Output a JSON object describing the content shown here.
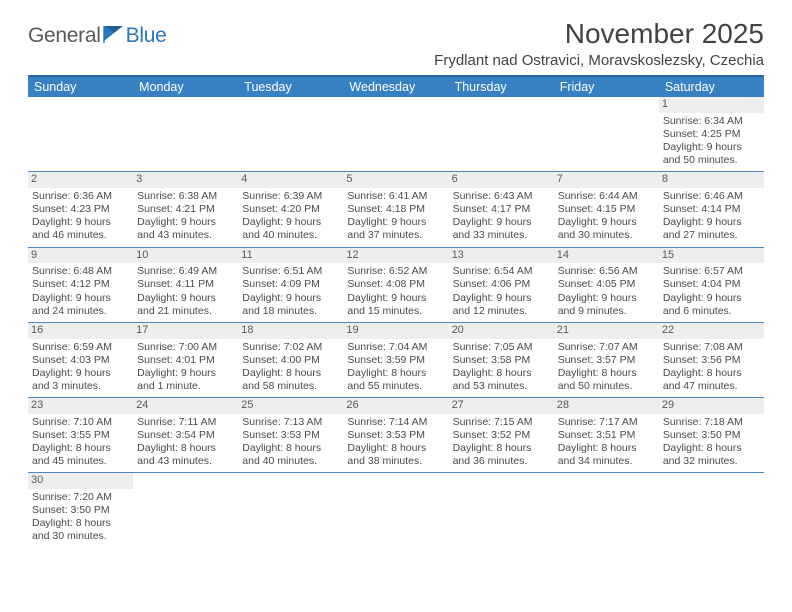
{
  "logo": {
    "part1": "General",
    "part2": "Blue"
  },
  "title": "November 2025",
  "location": "Frydlant nad Ostravici, Moravskoslezsky, Czechia",
  "colors": {
    "header_bg": "#3781c2",
    "header_border_top": "#2764a3",
    "row_divider": "#4a87c4",
    "daynum_bg": "#eeeeee",
    "text": "#424242",
    "logo_blue": "#2a77bd",
    "logo_gray": "#595959"
  },
  "day_headers": [
    "Sunday",
    "Monday",
    "Tuesday",
    "Wednesday",
    "Thursday",
    "Friday",
    "Saturday"
  ],
  "weeks": [
    [
      {
        "blank": true
      },
      {
        "blank": true
      },
      {
        "blank": true
      },
      {
        "blank": true
      },
      {
        "blank": true
      },
      {
        "blank": true
      },
      {
        "day": "1",
        "sunrise": "Sunrise: 6:34 AM",
        "sunset": "Sunset: 4:25 PM",
        "daylight1": "Daylight: 9 hours",
        "daylight2": "and 50 minutes."
      }
    ],
    [
      {
        "day": "2",
        "sunrise": "Sunrise: 6:36 AM",
        "sunset": "Sunset: 4:23 PM",
        "daylight1": "Daylight: 9 hours",
        "daylight2": "and 46 minutes."
      },
      {
        "day": "3",
        "sunrise": "Sunrise: 6:38 AM",
        "sunset": "Sunset: 4:21 PM",
        "daylight1": "Daylight: 9 hours",
        "daylight2": "and 43 minutes."
      },
      {
        "day": "4",
        "sunrise": "Sunrise: 6:39 AM",
        "sunset": "Sunset: 4:20 PM",
        "daylight1": "Daylight: 9 hours",
        "daylight2": "and 40 minutes."
      },
      {
        "day": "5",
        "sunrise": "Sunrise: 6:41 AM",
        "sunset": "Sunset: 4:18 PM",
        "daylight1": "Daylight: 9 hours",
        "daylight2": "and 37 minutes."
      },
      {
        "day": "6",
        "sunrise": "Sunrise: 6:43 AM",
        "sunset": "Sunset: 4:17 PM",
        "daylight1": "Daylight: 9 hours",
        "daylight2": "and 33 minutes."
      },
      {
        "day": "7",
        "sunrise": "Sunrise: 6:44 AM",
        "sunset": "Sunset: 4:15 PM",
        "daylight1": "Daylight: 9 hours",
        "daylight2": "and 30 minutes."
      },
      {
        "day": "8",
        "sunrise": "Sunrise: 6:46 AM",
        "sunset": "Sunset: 4:14 PM",
        "daylight1": "Daylight: 9 hours",
        "daylight2": "and 27 minutes."
      }
    ],
    [
      {
        "day": "9",
        "sunrise": "Sunrise: 6:48 AM",
        "sunset": "Sunset: 4:12 PM",
        "daylight1": "Daylight: 9 hours",
        "daylight2": "and 24 minutes."
      },
      {
        "day": "10",
        "sunrise": "Sunrise: 6:49 AM",
        "sunset": "Sunset: 4:11 PM",
        "daylight1": "Daylight: 9 hours",
        "daylight2": "and 21 minutes."
      },
      {
        "day": "11",
        "sunrise": "Sunrise: 6:51 AM",
        "sunset": "Sunset: 4:09 PM",
        "daylight1": "Daylight: 9 hours",
        "daylight2": "and 18 minutes."
      },
      {
        "day": "12",
        "sunrise": "Sunrise: 6:52 AM",
        "sunset": "Sunset: 4:08 PM",
        "daylight1": "Daylight: 9 hours",
        "daylight2": "and 15 minutes."
      },
      {
        "day": "13",
        "sunrise": "Sunrise: 6:54 AM",
        "sunset": "Sunset: 4:06 PM",
        "daylight1": "Daylight: 9 hours",
        "daylight2": "and 12 minutes."
      },
      {
        "day": "14",
        "sunrise": "Sunrise: 6:56 AM",
        "sunset": "Sunset: 4:05 PM",
        "daylight1": "Daylight: 9 hours",
        "daylight2": "and 9 minutes."
      },
      {
        "day": "15",
        "sunrise": "Sunrise: 6:57 AM",
        "sunset": "Sunset: 4:04 PM",
        "daylight1": "Daylight: 9 hours",
        "daylight2": "and 6 minutes."
      }
    ],
    [
      {
        "day": "16",
        "sunrise": "Sunrise: 6:59 AM",
        "sunset": "Sunset: 4:03 PM",
        "daylight1": "Daylight: 9 hours",
        "daylight2": "and 3 minutes."
      },
      {
        "day": "17",
        "sunrise": "Sunrise: 7:00 AM",
        "sunset": "Sunset: 4:01 PM",
        "daylight1": "Daylight: 9 hours",
        "daylight2": "and 1 minute."
      },
      {
        "day": "18",
        "sunrise": "Sunrise: 7:02 AM",
        "sunset": "Sunset: 4:00 PM",
        "daylight1": "Daylight: 8 hours",
        "daylight2": "and 58 minutes."
      },
      {
        "day": "19",
        "sunrise": "Sunrise: 7:04 AM",
        "sunset": "Sunset: 3:59 PM",
        "daylight1": "Daylight: 8 hours",
        "daylight2": "and 55 minutes."
      },
      {
        "day": "20",
        "sunrise": "Sunrise: 7:05 AM",
        "sunset": "Sunset: 3:58 PM",
        "daylight1": "Daylight: 8 hours",
        "daylight2": "and 53 minutes."
      },
      {
        "day": "21",
        "sunrise": "Sunrise: 7:07 AM",
        "sunset": "Sunset: 3:57 PM",
        "daylight1": "Daylight: 8 hours",
        "daylight2": "and 50 minutes."
      },
      {
        "day": "22",
        "sunrise": "Sunrise: 7:08 AM",
        "sunset": "Sunset: 3:56 PM",
        "daylight1": "Daylight: 8 hours",
        "daylight2": "and 47 minutes."
      }
    ],
    [
      {
        "day": "23",
        "sunrise": "Sunrise: 7:10 AM",
        "sunset": "Sunset: 3:55 PM",
        "daylight1": "Daylight: 8 hours",
        "daylight2": "and 45 minutes."
      },
      {
        "day": "24",
        "sunrise": "Sunrise: 7:11 AM",
        "sunset": "Sunset: 3:54 PM",
        "daylight1": "Daylight: 8 hours",
        "daylight2": "and 43 minutes."
      },
      {
        "day": "25",
        "sunrise": "Sunrise: 7:13 AM",
        "sunset": "Sunset: 3:53 PM",
        "daylight1": "Daylight: 8 hours",
        "daylight2": "and 40 minutes."
      },
      {
        "day": "26",
        "sunrise": "Sunrise: 7:14 AM",
        "sunset": "Sunset: 3:53 PM",
        "daylight1": "Daylight: 8 hours",
        "daylight2": "and 38 minutes."
      },
      {
        "day": "27",
        "sunrise": "Sunrise: 7:15 AM",
        "sunset": "Sunset: 3:52 PM",
        "daylight1": "Daylight: 8 hours",
        "daylight2": "and 36 minutes."
      },
      {
        "day": "28",
        "sunrise": "Sunrise: 7:17 AM",
        "sunset": "Sunset: 3:51 PM",
        "daylight1": "Daylight: 8 hours",
        "daylight2": "and 34 minutes."
      },
      {
        "day": "29",
        "sunrise": "Sunrise: 7:18 AM",
        "sunset": "Sunset: 3:50 PM",
        "daylight1": "Daylight: 8 hours",
        "daylight2": "and 32 minutes."
      }
    ],
    [
      {
        "day": "30",
        "sunrise": "Sunrise: 7:20 AM",
        "sunset": "Sunset: 3:50 PM",
        "daylight1": "Daylight: 8 hours",
        "daylight2": "and 30 minutes."
      },
      {
        "blank": true
      },
      {
        "blank": true
      },
      {
        "blank": true
      },
      {
        "blank": true
      },
      {
        "blank": true
      },
      {
        "blank": true
      }
    ]
  ]
}
